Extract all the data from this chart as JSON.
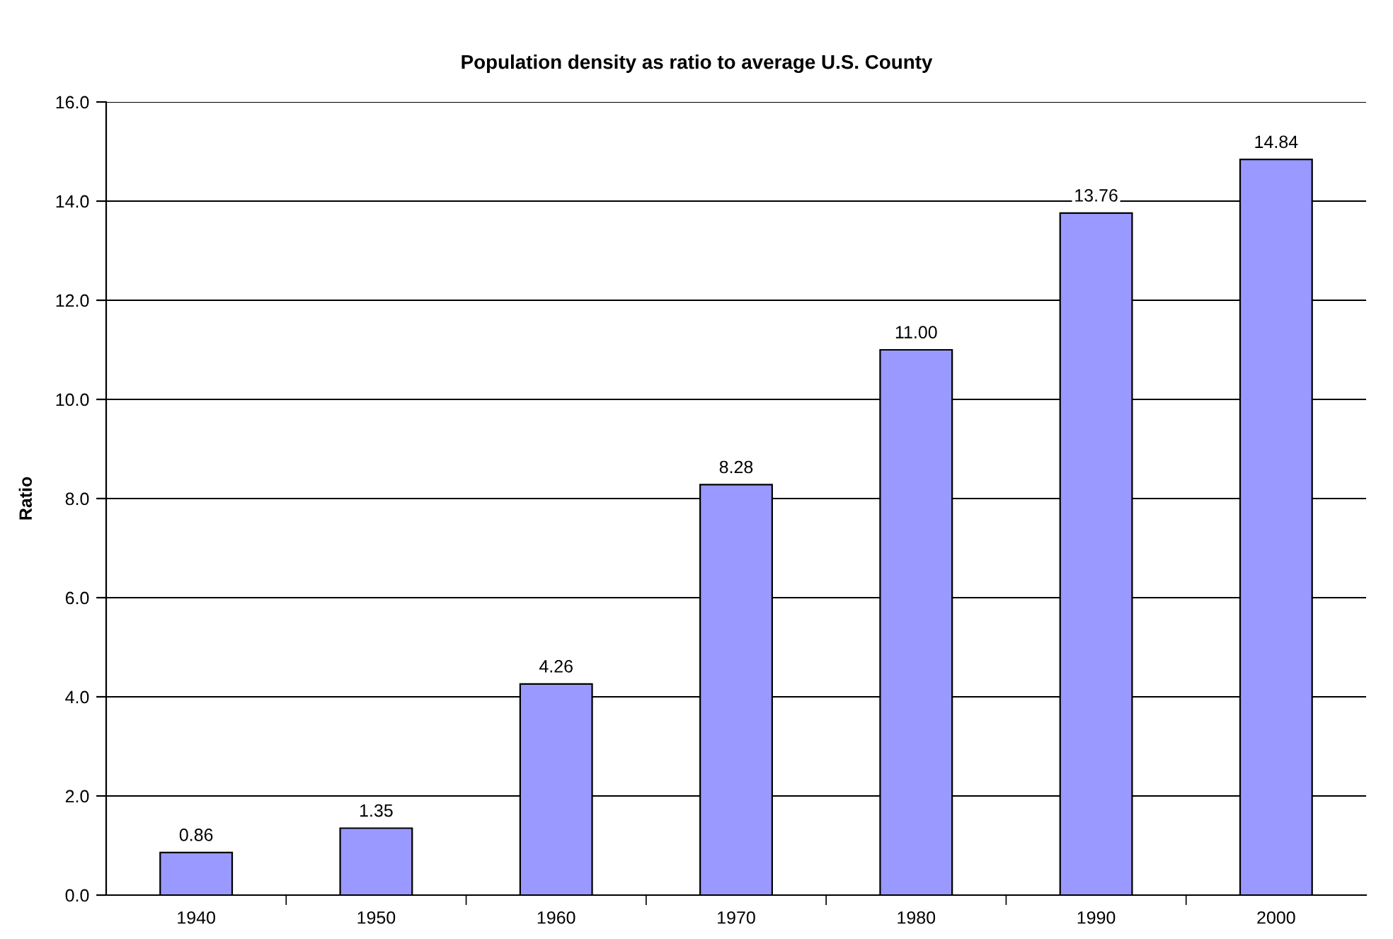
{
  "chart_data": {
    "type": "bar",
    "title": "Population density as ratio to average U.S. County",
    "ylabel": "Ratio",
    "categories": [
      "1940",
      "1950",
      "1960",
      "1970",
      "1980",
      "1990",
      "2000"
    ],
    "values": [
      0.86,
      1.35,
      4.26,
      8.28,
      11.0,
      13.76,
      14.84
    ],
    "value_labels": [
      "0.86",
      "1.35",
      "4.26",
      "8.28",
      "11.00",
      "13.76",
      "14.84"
    ],
    "color": "#9999ff",
    "ylim": [
      0,
      16
    ],
    "yticks": [
      {
        "value": 0,
        "label": "0.0"
      },
      {
        "value": 2,
        "label": "2.0"
      },
      {
        "value": 4,
        "label": "4.0"
      },
      {
        "value": 6,
        "label": "6.0"
      },
      {
        "value": 8,
        "label": "8.0"
      },
      {
        "value": 10,
        "label": "10.0"
      },
      {
        "value": 12,
        "label": "12.0"
      },
      {
        "value": 14,
        "label": "14.0"
      },
      {
        "value": 16,
        "label": "16.0"
      }
    ],
    "grid": "y",
    "legend": false
  }
}
